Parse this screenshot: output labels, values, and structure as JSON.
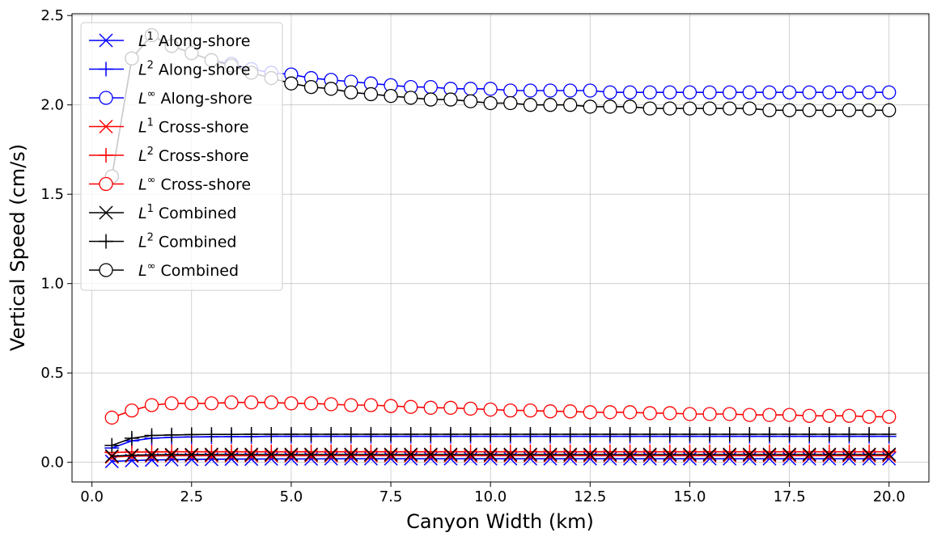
{
  "chart_data": {
    "type": "line",
    "xlabel": "Canyon Width (km)",
    "ylabel": "Vertical Speed (cm/s)",
    "xlim": [
      -0.5,
      21.0
    ],
    "ylim": [
      -0.11,
      2.51
    ],
    "xticks": [
      "0.0",
      "2.5",
      "5.0",
      "7.5",
      "10.0",
      "12.5",
      "15.0",
      "17.5",
      "20.0"
    ],
    "yticks": [
      "0.0",
      "0.5",
      "1.0",
      "1.5",
      "2.0",
      "2.5"
    ],
    "grid": true,
    "legend_position": "top-left",
    "x": [
      0.5,
      1.0,
      1.5,
      2.0,
      2.5,
      3.0,
      3.5,
      4.0,
      4.5,
      5.0,
      5.5,
      6.0,
      6.5,
      7.0,
      7.5,
      8.0,
      8.5,
      9.0,
      9.5,
      10.0,
      10.5,
      11.0,
      11.5,
      12.0,
      12.5,
      13.0,
      13.5,
      14.0,
      14.5,
      15.0,
      15.5,
      16.0,
      16.5,
      17.0,
      17.5,
      18.0,
      18.5,
      19.0,
      19.5,
      20.0
    ],
    "series": [
      {
        "name_prefix": "L",
        "name_sup": "1",
        "name_suffix": " Along-shore",
        "color": "#0000ff",
        "marker": "x",
        "values": [
          0.005,
          0.01,
          0.013,
          0.015,
          0.016,
          0.017,
          0.018,
          0.018,
          0.019,
          0.019,
          0.019,
          0.02,
          0.02,
          0.02,
          0.02,
          0.02,
          0.02,
          0.02,
          0.02,
          0.02,
          0.02,
          0.02,
          0.02,
          0.02,
          0.02,
          0.02,
          0.02,
          0.02,
          0.02,
          0.02,
          0.02,
          0.02,
          0.02,
          0.02,
          0.02,
          0.02,
          0.02,
          0.02,
          0.02,
          0.02
        ]
      },
      {
        "name_prefix": "L",
        "name_sup": "2",
        "name_suffix": " Along-shore",
        "color": "#0000ff",
        "marker": "+",
        "values": [
          0.08,
          0.12,
          0.135,
          0.14,
          0.142,
          0.143,
          0.144,
          0.144,
          0.145,
          0.145,
          0.145,
          0.145,
          0.145,
          0.145,
          0.145,
          0.145,
          0.145,
          0.145,
          0.145,
          0.145,
          0.145,
          0.145,
          0.145,
          0.145,
          0.145,
          0.145,
          0.145,
          0.145,
          0.145,
          0.145,
          0.145,
          0.145,
          0.145,
          0.145,
          0.145,
          0.145,
          0.145,
          0.145,
          0.145,
          0.145
        ]
      },
      {
        "name_prefix": "L",
        "name_sup": "∞",
        "name_suffix": " Along-shore",
        "color": "#0000ff",
        "marker": "o",
        "values": [
          1.6,
          2.26,
          2.39,
          2.33,
          2.29,
          2.25,
          2.23,
          2.2,
          2.18,
          2.17,
          2.15,
          2.14,
          2.13,
          2.12,
          2.11,
          2.1,
          2.1,
          2.09,
          2.09,
          2.09,
          2.08,
          2.08,
          2.08,
          2.08,
          2.08,
          2.07,
          2.07,
          2.07,
          2.07,
          2.07,
          2.07,
          2.07,
          2.07,
          2.07,
          2.07,
          2.07,
          2.07,
          2.07,
          2.07,
          2.07
        ]
      },
      {
        "name_prefix": "L",
        "name_sup": "1",
        "name_suffix": " Cross-shore",
        "color": "#ff0000",
        "marker": "x",
        "values": [
          0.03,
          0.035,
          0.036,
          0.037,
          0.037,
          0.037,
          0.037,
          0.037,
          0.037,
          0.037,
          0.037,
          0.037,
          0.037,
          0.037,
          0.037,
          0.037,
          0.037,
          0.037,
          0.037,
          0.037,
          0.037,
          0.037,
          0.037,
          0.037,
          0.037,
          0.037,
          0.037,
          0.037,
          0.037,
          0.037,
          0.037,
          0.037,
          0.037,
          0.037,
          0.037,
          0.037,
          0.037,
          0.037,
          0.037,
          0.037
        ]
      },
      {
        "name_prefix": "L",
        "name_sup": "2",
        "name_suffix": " Cross-shore",
        "color": "#ff0000",
        "marker": "+",
        "values": [
          0.055,
          0.058,
          0.058,
          0.059,
          0.059,
          0.059,
          0.059,
          0.059,
          0.059,
          0.059,
          0.059,
          0.059,
          0.059,
          0.059,
          0.059,
          0.059,
          0.059,
          0.059,
          0.059,
          0.059,
          0.059,
          0.059,
          0.059,
          0.059,
          0.059,
          0.059,
          0.059,
          0.059,
          0.059,
          0.059,
          0.059,
          0.059,
          0.059,
          0.059,
          0.059,
          0.059,
          0.059,
          0.059,
          0.059,
          0.059
        ]
      },
      {
        "name_prefix": "L",
        "name_sup": "∞",
        "name_suffix": " Cross-shore",
        "color": "#ff0000",
        "marker": "o",
        "values": [
          0.25,
          0.29,
          0.32,
          0.33,
          0.33,
          0.33,
          0.335,
          0.335,
          0.335,
          0.33,
          0.33,
          0.325,
          0.32,
          0.32,
          0.315,
          0.31,
          0.305,
          0.305,
          0.3,
          0.295,
          0.29,
          0.29,
          0.285,
          0.285,
          0.28,
          0.28,
          0.28,
          0.275,
          0.275,
          0.27,
          0.27,
          0.27,
          0.265,
          0.265,
          0.265,
          0.26,
          0.26,
          0.26,
          0.255,
          0.255
        ]
      },
      {
        "name_prefix": "L",
        "name_sup": "1",
        "name_suffix": " Combined",
        "color": "#000000",
        "marker": "x",
        "values": [
          0.035,
          0.04,
          0.042,
          0.043,
          0.043,
          0.044,
          0.044,
          0.044,
          0.044,
          0.044,
          0.044,
          0.044,
          0.044,
          0.044,
          0.044,
          0.044,
          0.044,
          0.044,
          0.044,
          0.044,
          0.044,
          0.044,
          0.044,
          0.044,
          0.044,
          0.044,
          0.044,
          0.044,
          0.044,
          0.044,
          0.044,
          0.044,
          0.044,
          0.044,
          0.044,
          0.044,
          0.044,
          0.044,
          0.044,
          0.044
        ]
      },
      {
        "name_prefix": "L",
        "name_sup": "2",
        "name_suffix": " Combined",
        "color": "#000000",
        "marker": "+",
        "values": [
          0.095,
          0.135,
          0.15,
          0.153,
          0.155,
          0.156,
          0.156,
          0.157,
          0.157,
          0.157,
          0.157,
          0.157,
          0.157,
          0.157,
          0.157,
          0.157,
          0.157,
          0.157,
          0.157,
          0.157,
          0.157,
          0.157,
          0.157,
          0.157,
          0.157,
          0.157,
          0.157,
          0.157,
          0.157,
          0.157,
          0.157,
          0.157,
          0.157,
          0.157,
          0.157,
          0.157,
          0.157,
          0.157,
          0.157,
          0.157
        ]
      },
      {
        "name_prefix": "L",
        "name_sup": "∞",
        "name_suffix": " Combined",
        "color": "#000000",
        "marker": "o",
        "values": [
          1.6,
          2.26,
          2.39,
          2.33,
          2.29,
          2.25,
          2.22,
          2.18,
          2.15,
          2.12,
          2.1,
          2.09,
          2.07,
          2.06,
          2.05,
          2.04,
          2.03,
          2.03,
          2.02,
          2.01,
          2.01,
          2.0,
          2.0,
          2.0,
          1.99,
          1.99,
          1.99,
          1.98,
          1.98,
          1.98,
          1.98,
          1.98,
          1.98,
          1.97,
          1.97,
          1.97,
          1.97,
          1.97,
          1.97,
          1.97
        ]
      }
    ]
  }
}
